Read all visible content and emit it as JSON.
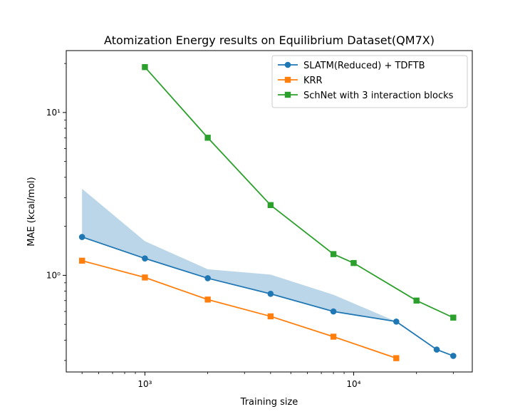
{
  "chart_data": {
    "type": "line",
    "title": "Atomization Energy results on Equilibrium Dataset(QM7X)",
    "xlabel": "Training size",
    "ylabel": "MAE (kcal/mol)",
    "xscale": "log",
    "yscale": "log",
    "xlim": [
      420,
      37000
    ],
    "ylim": [
      0.255,
      24
    ],
    "grid": false,
    "legend_position": "top-right",
    "x_tick_labels": [
      "10³",
      "10⁴"
    ],
    "y_tick_labels": [
      "10⁰",
      "10¹"
    ],
    "series": [
      {
        "name": "SLATM(Reduced) + TDFTB",
        "color": "#1f77b4",
        "marker": "circle",
        "x": [
          500,
          1000,
          2000,
          4000,
          8000,
          16000,
          25000,
          30000
        ],
        "y": [
          1.72,
          1.27,
          0.96,
          0.77,
          0.6,
          0.52,
          0.35,
          0.32
        ]
      },
      {
        "name": "KRR",
        "color": "#ff7f0e",
        "marker": "square",
        "x": [
          500,
          1000,
          2000,
          4000,
          8000,
          16000
        ],
        "y": [
          1.23,
          0.97,
          0.71,
          0.56,
          0.42,
          0.31
        ]
      },
      {
        "name": "SchNet with 3 interaction blocks",
        "color": "#2ca02c",
        "marker": "square",
        "x": [
          1000,
          2000,
          4000,
          8000,
          10000,
          20000,
          30000
        ],
        "y": [
          19.0,
          7.0,
          2.7,
          1.35,
          1.19,
          0.7,
          0.55
        ]
      }
    ],
    "band": {
      "color": "#1f77b4",
      "opacity": 0.3,
      "x": [
        500,
        1000,
        2000,
        4000,
        8000,
        16000
      ],
      "upper": [
        3.4,
        1.62,
        1.09,
        1.01,
        0.76,
        0.52
      ],
      "lower": [
        1.72,
        1.27,
        0.96,
        0.77,
        0.6,
        0.52
      ]
    }
  }
}
